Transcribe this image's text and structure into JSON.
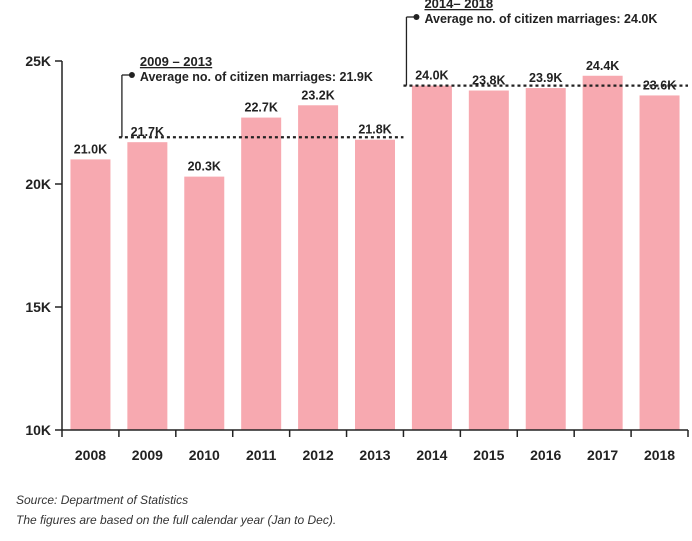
{
  "chart_data": {
    "type": "bar",
    "categories": [
      "2008",
      "2009",
      "2010",
      "2011",
      "2012",
      "2013",
      "2014",
      "2015",
      "2016",
      "2017",
      "2018"
    ],
    "values": [
      21.0,
      21.7,
      20.3,
      22.7,
      23.2,
      21.8,
      24.0,
      23.8,
      23.9,
      24.4,
      23.6
    ],
    "data_labels": [
      "21.0K",
      "21.7K",
      "20.3K",
      "22.7K",
      "23.2K",
      "21.8K",
      "24.0K",
      "23.8K",
      "23.9K",
      "24.4K",
      "23.6K"
    ],
    "ylim": [
      10,
      25
    ],
    "yticks": [
      10,
      15,
      20,
      25
    ],
    "ytick_labels": [
      "10K",
      "15K",
      "20K",
      "25K"
    ],
    "bar_color": "#f7a9b0",
    "grid": false,
    "annotations": [
      {
        "title": "2009 – 2013",
        "text": "Average no. of citizen marriages: 21.9K",
        "value": 21.9,
        "from_index": 1,
        "to_index": 5
      },
      {
        "title": "2014– 2018",
        "text": "Average no. of citizen marriages: 24.0K",
        "value": 24.0,
        "from_index": 6,
        "to_index": 10
      }
    ]
  },
  "footnotes": {
    "source": "Source: Department of Statistics",
    "note": "The figures are based on the full calendar year (Jan to Dec)."
  }
}
